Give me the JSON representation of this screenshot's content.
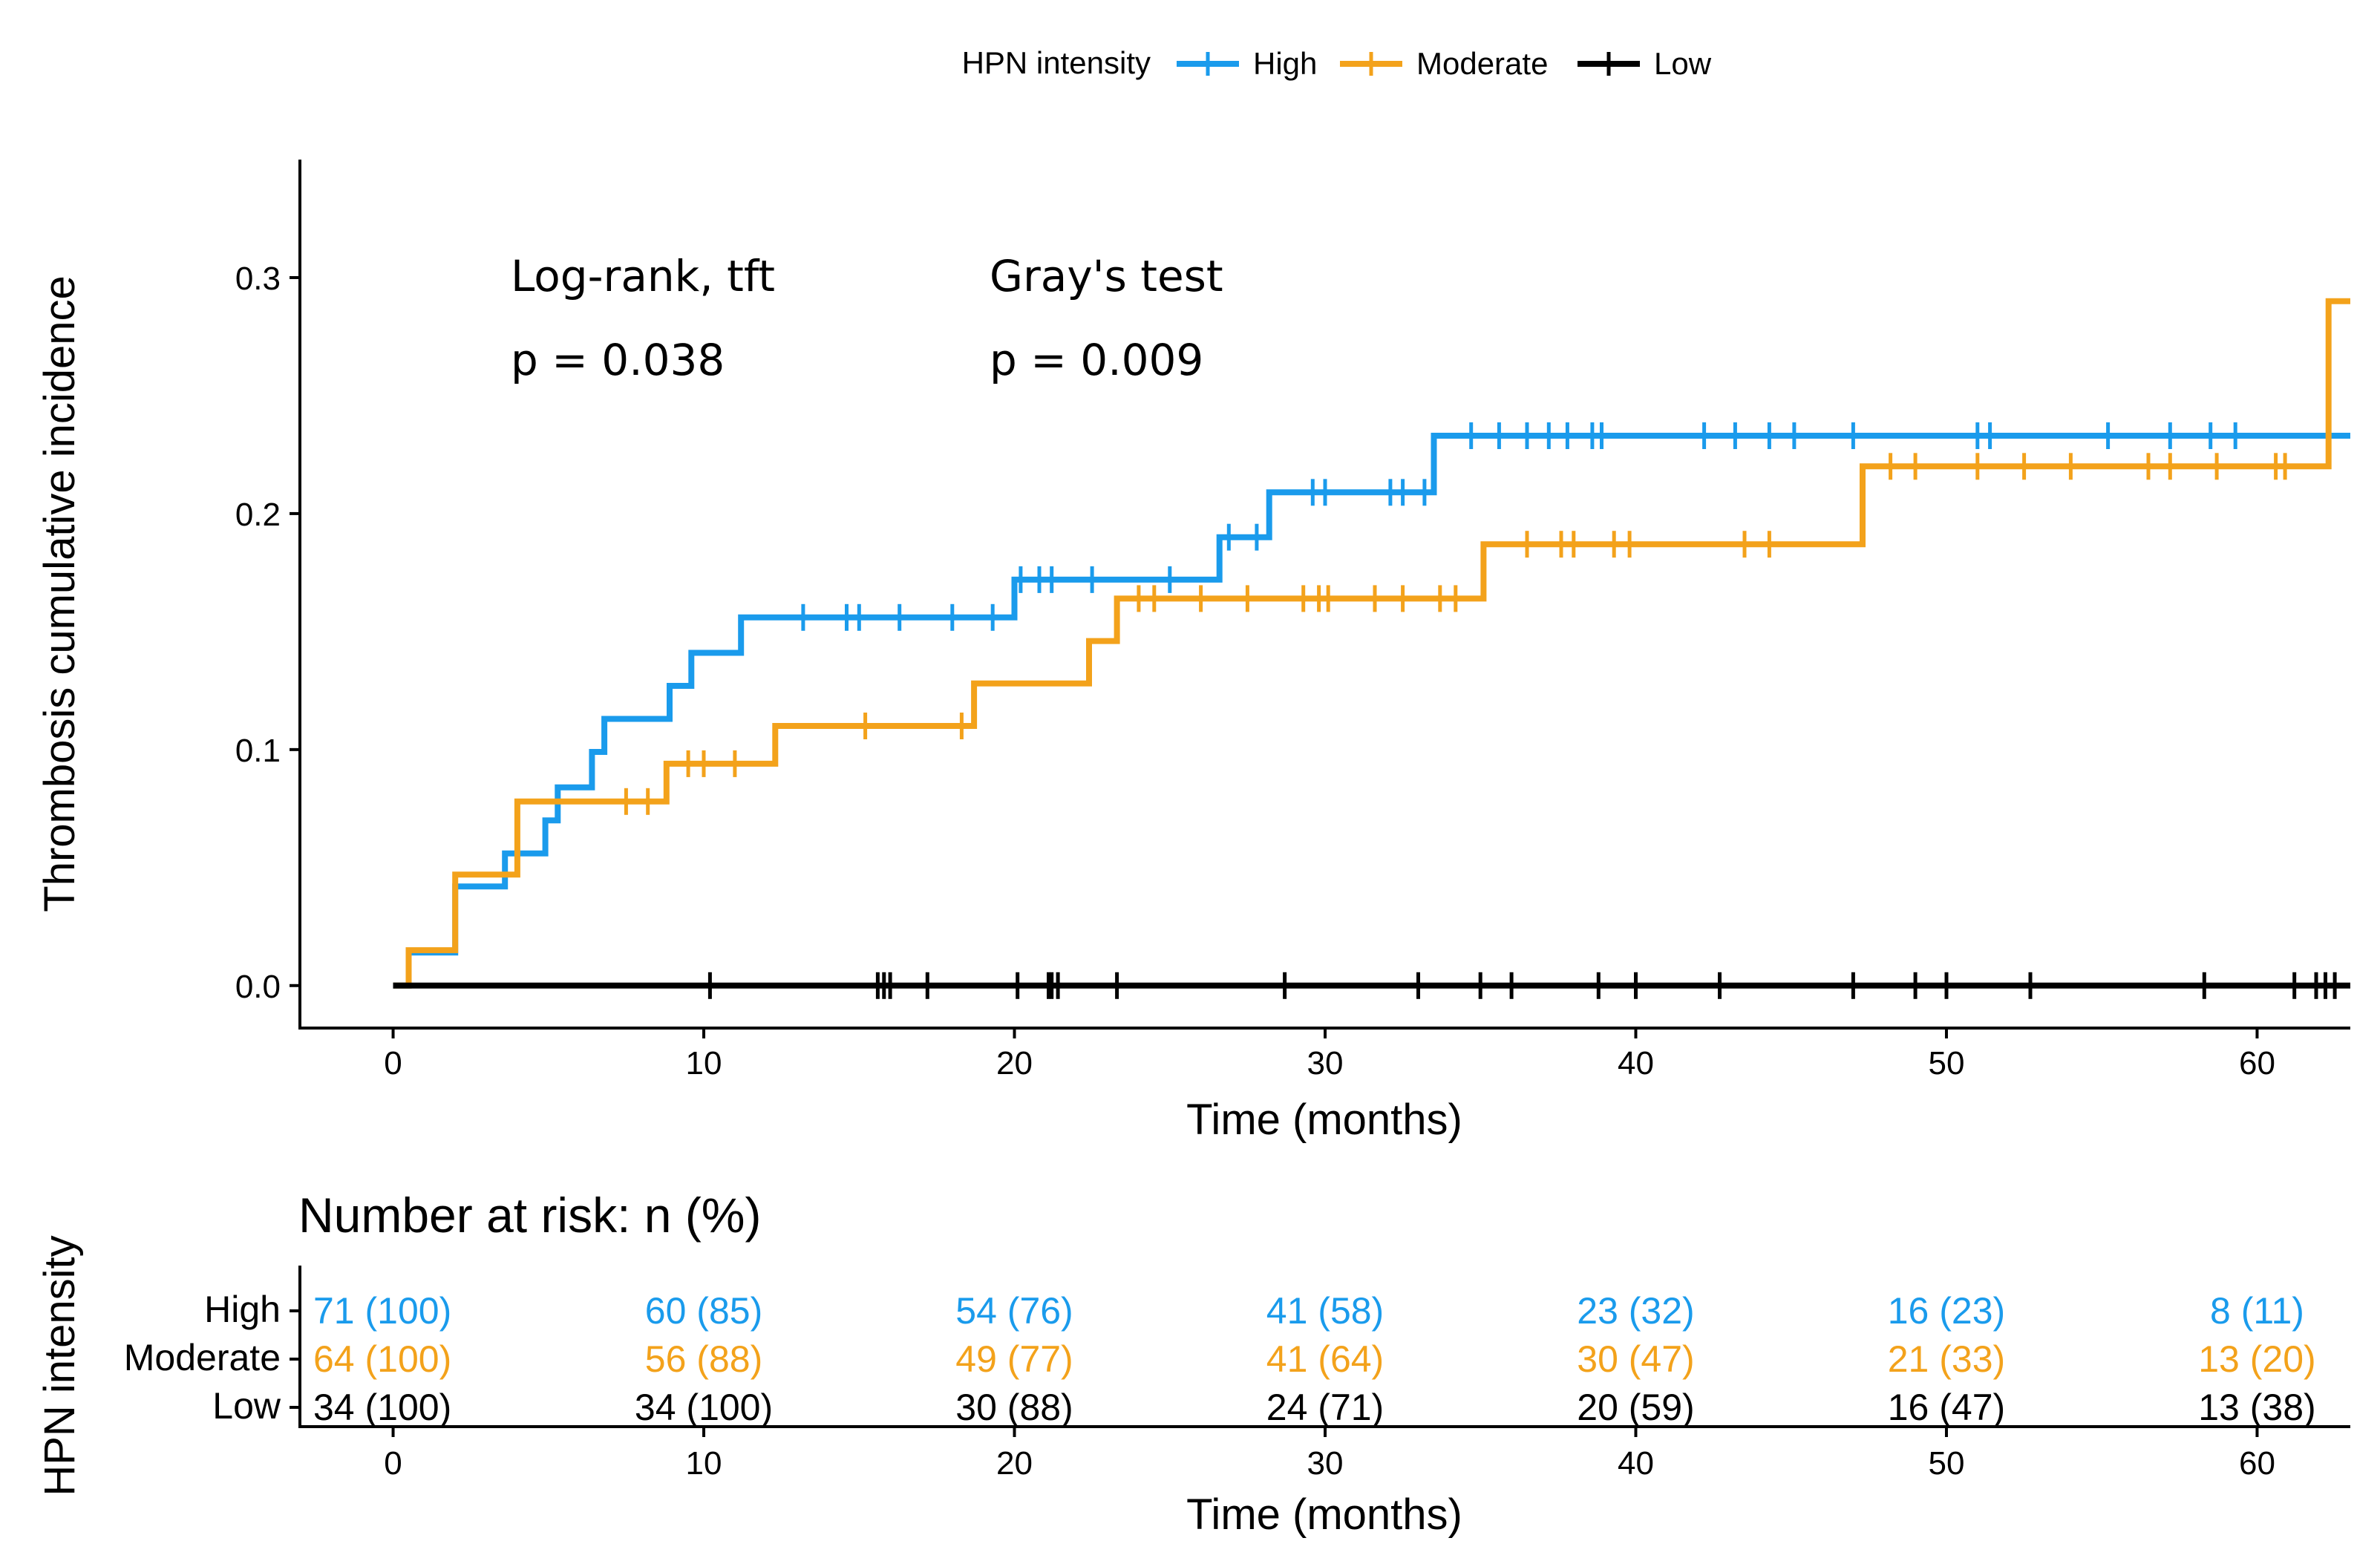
{
  "chart_data": {
    "type": "line",
    "subtype": "cumulative-incidence-step",
    "legend": {
      "title": "HPN intensity",
      "placement": "top",
      "entries": [
        "High",
        "Moderate",
        "Low"
      ]
    },
    "ylabel": "Thrombosis cumulative incidence",
    "xlabel": "Time (months)",
    "ylim": [
      -0.018,
      0.35
    ],
    "xlim": [
      -3,
      63
    ],
    "y_ticks": [
      0.0,
      0.1,
      0.2,
      0.3
    ],
    "y_tick_labels": [
      "0.0",
      "0.1",
      "0.2",
      "0.3"
    ],
    "x_ticks": [
      0,
      10,
      20,
      30,
      40,
      50,
      60
    ],
    "x_tick_labels": [
      "0",
      "10",
      "20",
      "30",
      "40",
      "50",
      "60"
    ],
    "grid": false,
    "annotations": {
      "logrank_label": "Log-rank, tft",
      "logrank_p": "p = 0.038",
      "gray_label": "Gray's test",
      "gray_p": "p = 0.009"
    },
    "series": [
      {
        "name": "High",
        "color": "#1a9bec",
        "steps": [
          [
            0,
            0
          ],
          [
            0.5,
            0.014
          ],
          [
            2,
            0.042
          ],
          [
            3.6,
            0.056
          ],
          [
            4.9,
            0.07
          ],
          [
            5.3,
            0.084
          ],
          [
            6.4,
            0.099
          ],
          [
            6.8,
            0.113
          ],
          [
            8.9,
            0.127
          ],
          [
            9.6,
            0.141
          ],
          [
            11.2,
            0.156
          ],
          [
            20,
            0.172
          ],
          [
            26.6,
            0.19
          ],
          [
            28.2,
            0.209
          ],
          [
            33.5,
            0.233
          ],
          [
            63,
            0.233
          ]
        ],
        "censor_times": [
          13.2,
          14.6,
          15,
          16.3,
          18,
          19.3,
          20.2,
          20.8,
          21.2,
          22.5,
          25,
          26.9,
          27.8,
          29.6,
          30,
          32.1,
          32.5,
          33.2,
          34.7,
          35.6,
          36.5,
          37.2,
          37.8,
          38.6,
          38.9,
          42.2,
          43.2,
          44.3,
          45.1,
          47,
          51,
          51.4,
          55.2,
          57.2,
          58.5,
          59.3
        ]
      },
      {
        "name": "Moderate",
        "color": "#f3a21b",
        "steps": [
          [
            0,
            0
          ],
          [
            0.5,
            0.015
          ],
          [
            2,
            0.047
          ],
          [
            4,
            0.078
          ],
          [
            8.8,
            0.094
          ],
          [
            12.3,
            0.11
          ],
          [
            18.7,
            0.128
          ],
          [
            22.4,
            0.146
          ],
          [
            23.3,
            0.164
          ],
          [
            35.1,
            0.187
          ],
          [
            47.3,
            0.22
          ],
          [
            62.3,
            0.29
          ],
          [
            63,
            0.29
          ]
        ],
        "censor_times": [
          7.5,
          8.2,
          9.5,
          10,
          11,
          15.2,
          18.3,
          24,
          24.5,
          26,
          27.5,
          29.3,
          29.8,
          30.1,
          31.6,
          32.5,
          33.7,
          34.2,
          36.5,
          37.6,
          38,
          39.3,
          39.8,
          43.5,
          44.3,
          48.2,
          49,
          51,
          52.5,
          54,
          56.5,
          57.2,
          58.7,
          60.6,
          60.9
        ]
      },
      {
        "name": "Low",
        "color": "#000000",
        "steps": [
          [
            0,
            0
          ],
          [
            63,
            0
          ]
        ],
        "censor_times": [
          10.2,
          15.6,
          15.8,
          16,
          17.2,
          20.1,
          21.1,
          21.2,
          21.4,
          23.3,
          28.7,
          33,
          35,
          36,
          38.8,
          40,
          42.7,
          47,
          49,
          50,
          52.7,
          58.3,
          61.2,
          61.9,
          62.2,
          62.5
        ]
      }
    ],
    "risk_table": {
      "title": "Number at risk: n (%)",
      "ylabel": "HPN intensity",
      "xlabel": "Time (months)",
      "times": [
        0,
        10,
        20,
        30,
        40,
        50,
        60
      ],
      "time_labels": [
        "0",
        "10",
        "20",
        "30",
        "40",
        "50",
        "60"
      ],
      "rows": [
        {
          "group": "High",
          "color": "#1a9bec",
          "values": [
            "71 (100)",
            "60 (85)",
            "54 (76)",
            "41 (58)",
            "23 (32)",
            "16 (23)",
            "8 (11)"
          ]
        },
        {
          "group": "Moderate",
          "color": "#f3a21b",
          "values": [
            "64 (100)",
            "56 (88)",
            "49 (77)",
            "41 (64)",
            "30 (47)",
            "21 (33)",
            "13 (20)"
          ]
        },
        {
          "group": "Low",
          "color": "#000000",
          "values": [
            "34 (100)",
            "34 (100)",
            "30 (88)",
            "24 (71)",
            "20 (59)",
            "16 (47)",
            "13 (38)"
          ]
        }
      ]
    }
  }
}
